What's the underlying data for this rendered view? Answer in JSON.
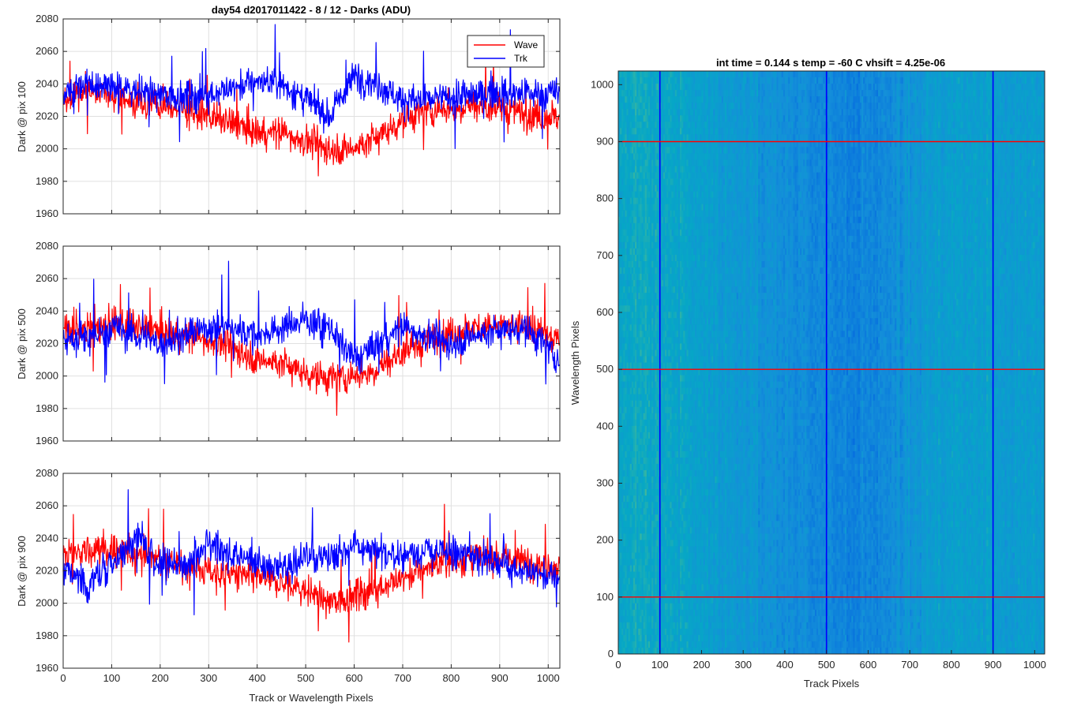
{
  "figure_title": "day54 d2017011422 - 8 / 12 - Darks (ADU)",
  "colors": {
    "wave": "#ff0000",
    "trk": "#0000ff",
    "grid": "#d9d9d9",
    "axis": "#262626"
  },
  "chart_data": [
    {
      "type": "line",
      "title": "day54 d2017011422 - 8 / 12 - Darks (ADU)",
      "xlabel": "",
      "ylabel": "Dark @ pix 100",
      "xlim": [
        0,
        1024
      ],
      "ylim": [
        1960,
        2080
      ],
      "xticks": [
        "0",
        "100",
        "200",
        "300",
        "400",
        "500",
        "600",
        "700",
        "800",
        "900",
        "1000"
      ],
      "yticks": [
        "1960",
        "1980",
        "2000",
        "2020",
        "2040",
        "2060",
        "2080"
      ],
      "grid": true,
      "legend": {
        "placement": "top-right",
        "entries": [
          "Wave",
          "Trk"
        ]
      },
      "series": [
        {
          "name": "Wave",
          "color": "#ff0000",
          "x": [
            0,
            50,
            100,
            150,
            200,
            250,
            300,
            350,
            400,
            450,
            500,
            550,
            600,
            650,
            700,
            750,
            800,
            850,
            900,
            950,
            1024
          ],
          "values": [
            2030,
            2037,
            2032,
            2030,
            2027,
            2024,
            2020,
            2015,
            2010,
            2010,
            2005,
            2000,
            2000,
            2008,
            2018,
            2023,
            2025,
            2027,
            2025,
            2022,
            2020
          ]
        },
        {
          "name": "Trk",
          "color": "#0000ff",
          "x": [
            0,
            50,
            100,
            150,
            200,
            250,
            300,
            350,
            400,
            450,
            500,
            550,
            600,
            650,
            700,
            750,
            800,
            850,
            900,
            950,
            1024
          ],
          "values": [
            2032,
            2040,
            2038,
            2036,
            2033,
            2032,
            2034,
            2037,
            2042,
            2040,
            2030,
            2020,
            2045,
            2040,
            2030,
            2030,
            2032,
            2033,
            2035,
            2034,
            2034
          ]
        }
      ]
    },
    {
      "type": "line",
      "title": "",
      "xlabel": "",
      "ylabel": "Dark @ pix 500",
      "xlim": [
        0,
        1024
      ],
      "ylim": [
        1960,
        2080
      ],
      "xticks": [
        "0",
        "100",
        "200",
        "300",
        "400",
        "500",
        "600",
        "700",
        "800",
        "900",
        "1000"
      ],
      "yticks": [
        "1960",
        "1980",
        "2000",
        "2020",
        "2040",
        "2060",
        "2080"
      ],
      "grid": true,
      "series": [
        {
          "name": "Wave",
          "color": "#ff0000",
          "x": [
            0,
            50,
            100,
            150,
            200,
            250,
            300,
            350,
            400,
            450,
            500,
            550,
            600,
            650,
            700,
            750,
            800,
            850,
            900,
            950,
            1024
          ],
          "values": [
            2028,
            2030,
            2032,
            2030,
            2027,
            2025,
            2022,
            2018,
            2010,
            2008,
            2002,
            1998,
            2000,
            2005,
            2015,
            2022,
            2027,
            2030,
            2030,
            2030,
            2022
          ]
        },
        {
          "name": "Trk",
          "color": "#0000ff",
          "x": [
            0,
            50,
            100,
            150,
            200,
            250,
            300,
            350,
            400,
            450,
            500,
            550,
            600,
            650,
            700,
            750,
            800,
            850,
            900,
            950,
            1024
          ],
          "values": [
            2022,
            2023,
            2030,
            2025,
            2020,
            2025,
            2030,
            2030,
            2025,
            2030,
            2035,
            2030,
            2010,
            2020,
            2030,
            2025,
            2020,
            2025,
            2028,
            2030,
            2010
          ]
        }
      ]
    },
    {
      "type": "line",
      "title": "",
      "xlabel": "Track or Wavelength Pixels",
      "ylabel": "Dark @ pix 900",
      "xlim": [
        0,
        1024
      ],
      "ylim": [
        1960,
        2080
      ],
      "xticks": [
        "0",
        "100",
        "200",
        "300",
        "400",
        "500",
        "600",
        "700",
        "800",
        "900",
        "1000"
      ],
      "yticks": [
        "1960",
        "1980",
        "2000",
        "2020",
        "2040",
        "2060",
        "2080"
      ],
      "grid": true,
      "series": [
        {
          "name": "Wave",
          "color": "#ff0000",
          "x": [
            0,
            50,
            100,
            150,
            200,
            250,
            300,
            350,
            400,
            450,
            500,
            550,
            600,
            650,
            700,
            750,
            800,
            850,
            900,
            950,
            1024
          ],
          "values": [
            2030,
            2032,
            2033,
            2030,
            2027,
            2023,
            2020,
            2018,
            2015,
            2012,
            2008,
            2000,
            2005,
            2010,
            2015,
            2022,
            2026,
            2028,
            2028,
            2026,
            2022
          ]
        },
        {
          "name": "Trk",
          "color": "#0000ff",
          "x": [
            0,
            50,
            100,
            150,
            200,
            250,
            300,
            350,
            400,
            450,
            500,
            550,
            600,
            650,
            700,
            750,
            800,
            850,
            900,
            950,
            1024
          ],
          "values": [
            2022,
            2010,
            2025,
            2040,
            2025,
            2022,
            2035,
            2030,
            2025,
            2022,
            2028,
            2030,
            2035,
            2030,
            2030,
            2032,
            2030,
            2030,
            2025,
            2020,
            2015
          ]
        }
      ]
    },
    {
      "type": "heatmap",
      "title": "int time = 0.144 s   temp = -60 C   vhsift = 4.25e-06",
      "xlabel": "Track Pixels",
      "ylabel": "Wavelength Pixels",
      "xlim": [
        0,
        1024
      ],
      "ylim": [
        0,
        1024
      ],
      "xticks": [
        "0",
        "100",
        "200",
        "300",
        "400",
        "500",
        "600",
        "700",
        "800",
        "900",
        "1000"
      ],
      "yticks": [
        "0",
        "100",
        "200",
        "300",
        "400",
        "500",
        "600",
        "700",
        "800",
        "900",
        "1000"
      ],
      "colormap": "parula",
      "column_profile": {
        "x": [
          0,
          50,
          100,
          150,
          200,
          250,
          300,
          350,
          400,
          450,
          500,
          550,
          600,
          650,
          700,
          750,
          800,
          850,
          900,
          950,
          1024
        ],
        "level": [
          0.62,
          0.72,
          0.7,
          0.66,
          0.6,
          0.56,
          0.52,
          0.48,
          0.42,
          0.4,
          0.36,
          0.32,
          0.34,
          0.4,
          0.48,
          0.56,
          0.58,
          0.6,
          0.6,
          0.58,
          0.58
        ]
      },
      "vertical_lines": {
        "x": [
          100,
          500,
          900
        ],
        "color": "#0000ff"
      },
      "horizontal_lines": {
        "y": [
          100,
          500,
          900
        ],
        "color": "#ff0000"
      }
    }
  ]
}
